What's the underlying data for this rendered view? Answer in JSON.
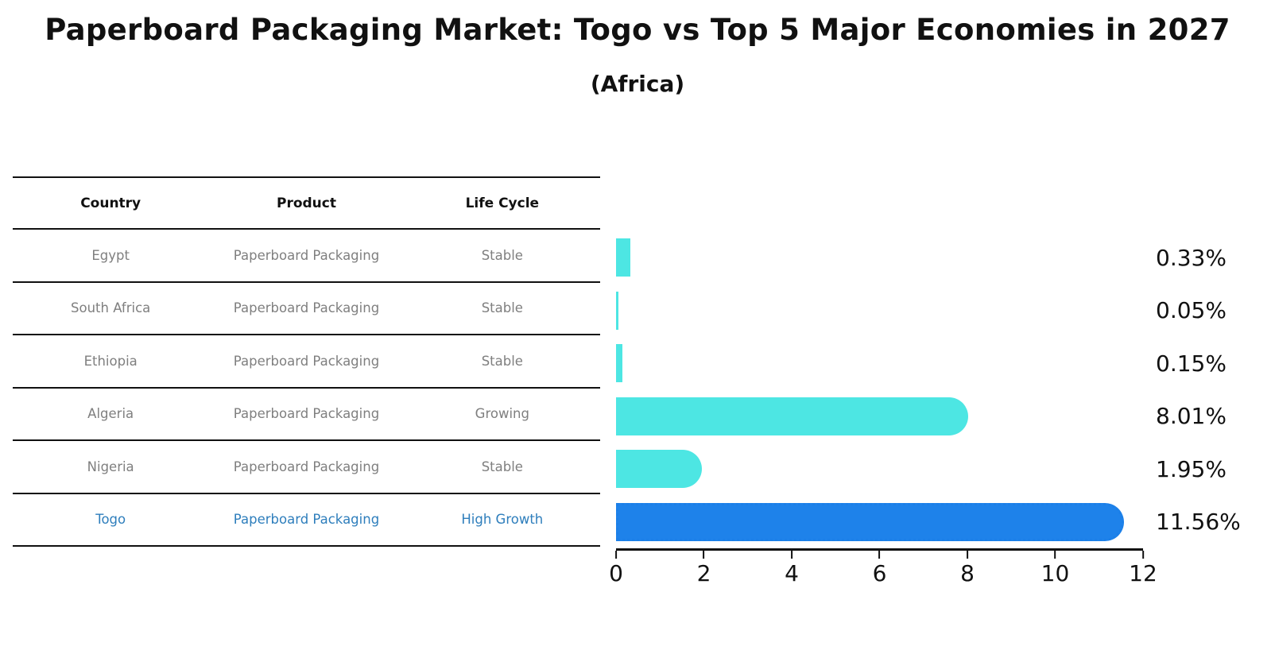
{
  "title": "Paperboard Packaging Market: Togo vs Top 5 Major Economies in 2027",
  "subtitle": "(Africa)",
  "table": {
    "columns": [
      "Country",
      "Product",
      "Life Cycle"
    ],
    "rows": [
      {
        "country": "Egypt",
        "product": "Paperboard Packaging",
        "life_cycle": "Stable",
        "highlight": false
      },
      {
        "country": "South Africa",
        "product": "Paperboard Packaging",
        "life_cycle": "Stable",
        "highlight": false
      },
      {
        "country": "Ethiopia",
        "product": "Paperboard Packaging",
        "life_cycle": "Stable",
        "highlight": false
      },
      {
        "country": "Algeria",
        "product": "Paperboard Packaging",
        "life_cycle": "Growing",
        "highlight": false
      },
      {
        "country": "Nigeria",
        "product": "Paperboard Packaging",
        "life_cycle": "Stable",
        "highlight": false
      },
      {
        "country": "Togo",
        "product": "Paperboard Packaging",
        "life_cycle": "High Growth",
        "highlight": true
      }
    ]
  },
  "chart_data": {
    "type": "bar",
    "orientation": "horizontal",
    "title": "Paperboard Packaging Market: Togo vs Top 5 Major Economies in 2027 (Africa)",
    "categories": [
      "Egypt",
      "South Africa",
      "Ethiopia",
      "Algeria",
      "Nigeria",
      "Togo"
    ],
    "values": [
      0.33,
      0.05,
      0.15,
      8.01,
      1.95,
      11.56
    ],
    "value_labels": [
      "0.33%",
      "0.05%",
      "0.15%",
      "8.01%",
      "1.95%",
      "11.56%"
    ],
    "unit": "%",
    "xlim": [
      0,
      12
    ],
    "x_ticks": [
      0,
      2,
      4,
      6,
      8,
      10,
      12
    ],
    "grid": false,
    "legend": false,
    "bar_color": "#4DE6E3",
    "highlight_color": "#1E82EA",
    "highlight_border_color": "#1B7FE8",
    "highlight_index": 5
  },
  "colors": {
    "title_text": "#111111",
    "table_header_text": "#111111",
    "table_body_text": "#7f7f7f",
    "highlight_row_text": "#2E7EBC",
    "axis": "#111111",
    "background": "#ffffff"
  }
}
